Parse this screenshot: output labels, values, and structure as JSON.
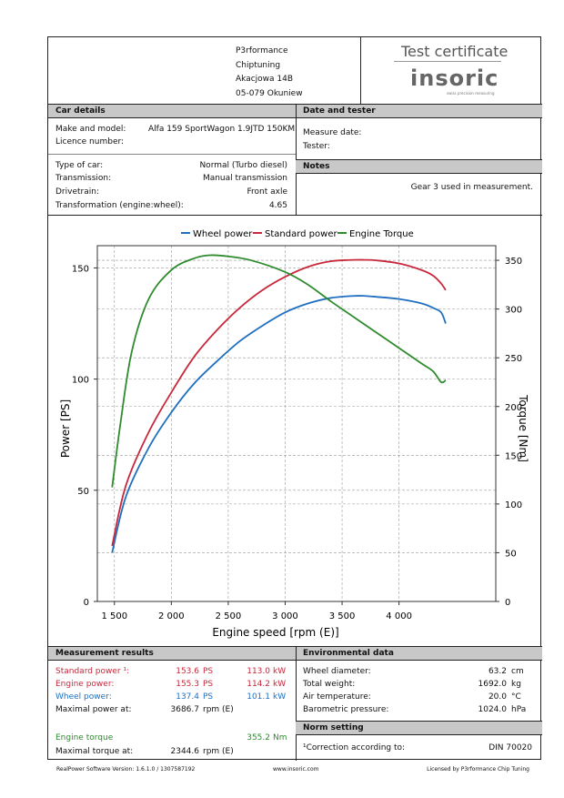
{
  "company": {
    "name": "P3rformance",
    "line2": "Chiptuning",
    "street": "Akacjowa 14B",
    "city": "05-079 Okuniew"
  },
  "certificate": {
    "title": "Test certificate",
    "brand": "insoric",
    "tagline": "swiss precision measuring"
  },
  "car_details": {
    "heading": "Car details",
    "make_label": "Make and model:",
    "make_value": "Alfa 159 SportWagon 1.9JTD 150KM",
    "licence_label": "Licence number:",
    "type_label": "Type of car:",
    "type_value": "Normal (Turbo diesel)",
    "transmission_label": "Transmission:",
    "transmission_value": "Manual transmission",
    "drivetrain_label": "Drivetrain:",
    "drivetrain_value": "Front axle",
    "transformation_label": "Transformation (engine:wheel):",
    "transformation_value": "4.65"
  },
  "date_tester": {
    "heading": "Date and tester",
    "measure_label": "Measure date:",
    "tester_label": "Tester:"
  },
  "notes": {
    "heading": "Notes",
    "text": "Gear 3 used in measurement."
  },
  "chart_data": {
    "type": "line",
    "xlabel": "Engine speed [rpm (E)]",
    "ylabel_left": "Power [PS]",
    "ylabel_right": "Torque [Nm]",
    "xlim": [
      1350,
      4850
    ],
    "ylim_left": [
      0,
      160
    ],
    "ylim_right": [
      0,
      365
    ],
    "xticks": [
      1500,
      2000,
      2500,
      3000,
      3500,
      4000
    ],
    "xtick_labels": [
      "1 500",
      "2 000",
      "2 500",
      "3 000",
      "3 500",
      "4 000"
    ],
    "yticks_left": [
      0,
      50,
      100,
      150
    ],
    "yticks_right": [
      0,
      50,
      100,
      150,
      200,
      250,
      300,
      350
    ],
    "legend_position": "top",
    "colors": {
      "wheel": "#1f6fc0",
      "standard": "#c8283c",
      "torque": "#2e8b2e"
    },
    "series": [
      {
        "name": "Wheel power",
        "axis": "left",
        "color": "#1f6fc0",
        "x": [
          1480,
          1600,
          1800,
          2000,
          2200,
          2400,
          2600,
          2800,
          3000,
          3200,
          3400,
          3600,
          3700,
          3800,
          4000,
          4200,
          4300,
          4370,
          4410
        ],
        "y": [
          22,
          47,
          69,
          85,
          98,
          108,
          117,
          124,
          130,
          134,
          136.5,
          137.4,
          137.4,
          137,
          136,
          134,
          132,
          130,
          125
        ]
      },
      {
        "name": "Standard power",
        "axis": "left",
        "color": "#c8283c",
        "x": [
          1480,
          1600,
          1800,
          2000,
          2200,
          2400,
          2600,
          2800,
          3000,
          3200,
          3400,
          3600,
          3700,
          3800,
          4000,
          4200,
          4300,
          4370,
          4410
        ],
        "y": [
          25,
          52,
          76,
          94,
          110,
          122,
          132,
          140,
          146,
          150.5,
          153,
          153.6,
          153.6,
          153.4,
          152,
          149,
          146.5,
          143,
          140
        ]
      },
      {
        "name": "Engine Torque",
        "axis": "right",
        "color": "#2e8b2e",
        "x": [
          1480,
          1550,
          1650,
          1800,
          2000,
          2200,
          2344,
          2500,
          2700,
          3000,
          3200,
          3400,
          3600,
          3800,
          4000,
          4200,
          4300,
          4370,
          4410
        ],
        "y": [
          117,
          180,
          255,
          310,
          340,
          352,
          355.2,
          354,
          350,
          338,
          325,
          308,
          292,
          276,
          260,
          244,
          236,
          225,
          227
        ]
      }
    ]
  },
  "measurement": {
    "heading": "Measurement results",
    "std_power": {
      "label": "Standard power ¹:",
      "ps": "153.6",
      "ps_unit": "PS",
      "kw": "113.0",
      "kw_unit": "kW"
    },
    "eng_power": {
      "label": "Engine power:",
      "ps": "155.3",
      "ps_unit": "PS",
      "kw": "114.2",
      "kw_unit": "kW"
    },
    "wheel_power": {
      "label": "Wheel power:",
      "ps": "137.4",
      "ps_unit": "PS",
      "kw": "101.1",
      "kw_unit": "kW"
    },
    "max_power": {
      "label": "Maximal power at:",
      "value": "3686.7",
      "unit": "rpm (E)"
    },
    "torque": {
      "label": "Engine torque",
      "value": "355.2",
      "unit": "Nm"
    },
    "max_torque": {
      "label": "Maximal torque at:",
      "value": "2344.6",
      "unit": "rpm (E)"
    }
  },
  "environment": {
    "heading": "Environmental data",
    "rows": [
      {
        "label": "Wheel diameter:",
        "value": "63.2",
        "unit": "cm"
      },
      {
        "label": "Total weight:",
        "value": "1692.0",
        "unit": "kg"
      },
      {
        "label": "Air temperature:",
        "value": "20.0",
        "unit": "°C"
      },
      {
        "label": "Barometric pressure:",
        "value": "1024.0",
        "unit": "hPa"
      }
    ]
  },
  "norm": {
    "heading": "Norm setting",
    "label": "¹Correction according to:",
    "value": "DIN 70020"
  },
  "footer": {
    "left": "RealPower Software Version: 1.6.1.0 / 1307587192",
    "center": "www.insoric.com",
    "right": "Licensed by P3rformance Chip Tuning"
  }
}
